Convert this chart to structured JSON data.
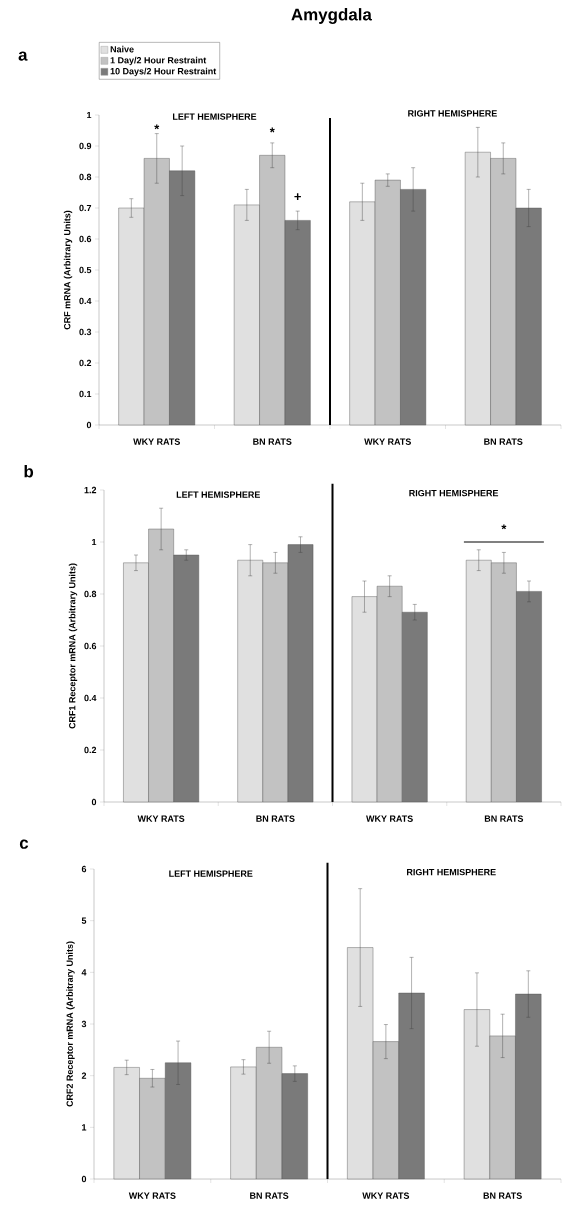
{
  "chart_data": [
    {
      "type": "bar",
      "title": "Amygdala",
      "ylabel": "CRF mRNA (Arbitrary Units)",
      "categories": [
        "WKY RATS",
        "BN RATS",
        "WKY RATS",
        "BN RATS"
      ],
      "series": [
        {
          "name": "Naive",
          "color": "#e0e0e0",
          "values": [
            0.7,
            0.71,
            0.72,
            0.88
          ],
          "errors": [
            0.03,
            0.05,
            0.06,
            0.08
          ]
        },
        {
          "name": "1 Day/2 Hour Restraint",
          "color": "#c2c2c2",
          "values": [
            0.86,
            0.87,
            0.79,
            0.86
          ],
          "errors": [
            0.08,
            0.04,
            0.02,
            0.05
          ]
        },
        {
          "name": "10 Days/2 Hour Restraint",
          "color": "#7a7a7a",
          "values": [
            0.82,
            0.66,
            0.76,
            0.7
          ],
          "errors": [
            0.08,
            0.03,
            0.07,
            0.06
          ]
        }
      ],
      "ylim": [
        0,
        1
      ],
      "yticks": [
        0,
        0.1,
        0.2,
        0.3,
        0.4,
        0.5,
        0.6,
        0.7,
        0.8,
        0.9,
        1
      ],
      "legend": "top left",
      "annotations": [
        "a",
        "LEFT HEMISPHERE",
        "RIGHT HEMISPHERE",
        "*",
        "*",
        "+"
      ]
    },
    {
      "type": "bar",
      "ylabel": "CRF1 Receptor mRNA (Arbitrary Units)",
      "categories": [
        "WKY RATS",
        "BN RATS",
        "WKY RATS",
        "BN RATS"
      ],
      "series": [
        {
          "color": "#e0e0e0",
          "values": [
            0.92,
            0.93,
            0.79,
            0.93
          ],
          "errors": [
            0.03,
            0.06,
            0.06,
            0.04
          ]
        },
        {
          "color": "#c2c2c2",
          "values": [
            1.05,
            0.92,
            0.83,
            0.92
          ],
          "errors": [
            0.08,
            0.04,
            0.04,
            0.04
          ]
        },
        {
          "color": "#7a7a7a",
          "values": [
            0.95,
            0.99,
            0.73,
            0.81
          ],
          "errors": [
            0.02,
            0.03,
            0.03,
            0.04
          ]
        }
      ],
      "ylim": [
        0,
        1.2
      ],
      "yticks": [
        0,
        0.2,
        0.4,
        0.6,
        0.8,
        1,
        1.2
      ],
      "annotations": [
        "b",
        "LEFT HEMISPHERE",
        "RIGHT HEMISPHERE",
        "*"
      ]
    },
    {
      "type": "bar",
      "ylabel": "CRF2 Receptor mRNA (Arbitrary Units)",
      "categories": [
        "WKY RATS",
        "BN RATS",
        "WKY RATS",
        "BN RATS"
      ],
      "series": [
        {
          "color": "#e0e0e0",
          "values": [
            2.16,
            2.17,
            4.48,
            3.28
          ],
          "errors": [
            0.14,
            0.14,
            1.14,
            0.71
          ]
        },
        {
          "color": "#c2c2c2",
          "values": [
            1.95,
            2.55,
            2.66,
            2.77
          ],
          "errors": [
            0.17,
            0.31,
            0.33,
            0.42
          ]
        },
        {
          "color": "#7a7a7a",
          "values": [
            2.25,
            2.04,
            3.6,
            3.58
          ],
          "errors": [
            0.42,
            0.15,
            0.69,
            0.45
          ]
        }
      ],
      "ylim": [
        0,
        6
      ],
      "yticks": [
        0,
        1,
        2,
        3,
        4,
        5,
        6
      ],
      "annotations": [
        "c",
        "LEFT HEMISPHERE",
        "RIGHT HEMISPHERE"
      ]
    }
  ]
}
